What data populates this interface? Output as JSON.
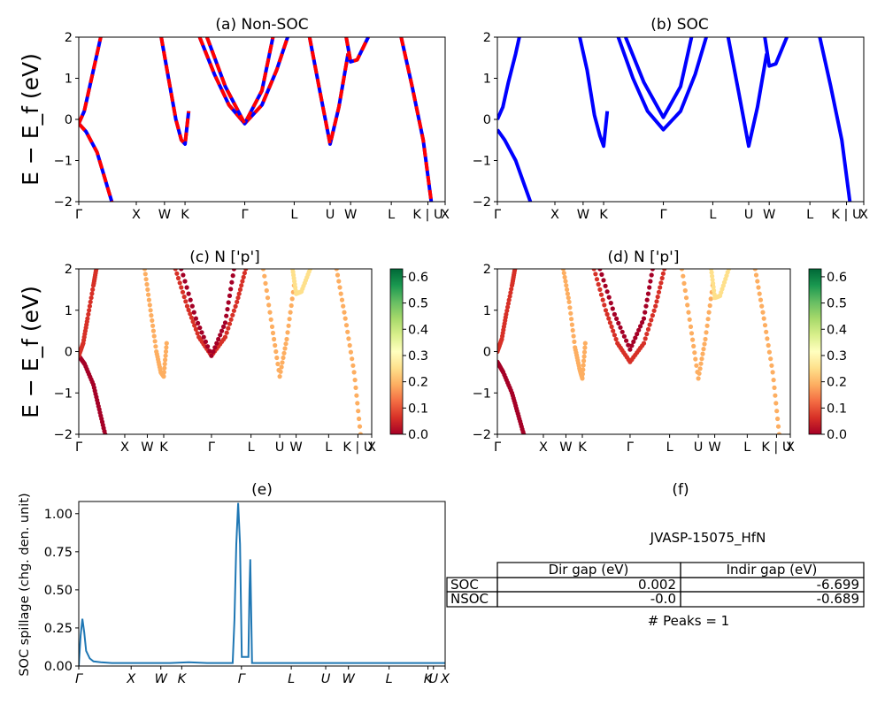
{
  "figure": {
    "ylabel_bands": "E − E_f (eV)",
    "ylabel_spillage": "SOC spillage (chg. den. unit)"
  },
  "colors": {
    "band_blue": "#0000ff",
    "band_red": "#ff0000",
    "spillage_line": "#1f77b4",
    "colormap": "RdYlGn"
  },
  "chart_data": [
    {
      "id": "a",
      "type": "line",
      "title": "(a) Non-SOC",
      "ylabel": "E − E_f (eV)",
      "ylim": [
        -2,
        2
      ],
      "yticks": [
        "−2",
        "−1",
        "0",
        "1",
        "2"
      ],
      "kpath_labels": [
        "Γ",
        "X",
        "W",
        "K",
        "Γ",
        "L",
        "U",
        "W",
        "L",
        "K | U",
        "X"
      ],
      "kpath_positions": [
        0,
        0.157,
        0.234,
        0.29,
        0.453,
        0.588,
        0.686,
        0.742,
        0.853,
        0.953,
        1
      ],
      "series": [
        {
          "color": "blue+red dashed",
          "x": [
            0,
            0.02,
            0.05,
            0.07,
            0.09
          ],
          "y": [
            -0.1,
            -0.3,
            -0.8,
            -1.4,
            -2
          ]
        },
        {
          "color": "blue+red dashed",
          "x": [
            0,
            0.015,
            0.03,
            0.05,
            0.06
          ],
          "y": [
            -0.1,
            0.2,
            0.8,
            1.6,
            2
          ]
        },
        {
          "color": "blue+red dashed",
          "x": [
            0.225,
            0.245,
            0.265,
            0.28,
            0.29,
            0.3
          ],
          "y": [
            2,
            1,
            0.0,
            -0.5,
            -0.6,
            0.2
          ]
        },
        {
          "color": "blue+red dashed",
          "x": [
            0.33,
            0.37,
            0.41,
            0.453,
            0.5,
            0.54,
            0.57
          ],
          "y": [
            2,
            1.1,
            0.35,
            -0.1,
            0.35,
            1.2,
            2
          ]
        },
        {
          "color": "blue+red dashed",
          "x": [
            0.35,
            0.4,
            0.453,
            0.5,
            0.53
          ],
          "y": [
            2,
            0.8,
            -0.1,
            0.7,
            2
          ]
        },
        {
          "color": "blue+red dashed",
          "x": [
            0.63,
            0.66,
            0.686,
            0.71,
            0.735
          ],
          "y": [
            2,
            0.6,
            -0.6,
            0.3,
            1.6
          ]
        },
        {
          "color": "blue+red dashed",
          "x": [
            0.73,
            0.742,
            0.76,
            0.79
          ],
          "y": [
            2,
            1.4,
            1.45,
            2
          ]
        },
        {
          "color": "blue+red dashed",
          "x": [
            0.88,
            0.91,
            0.94,
            0.962
          ],
          "y": [
            2,
            0.8,
            -0.5,
            -2
          ]
        }
      ]
    },
    {
      "id": "b",
      "type": "line",
      "title": "(b) SOC",
      "ylim": [
        -2,
        2
      ],
      "yticks": [
        "−2",
        "−1",
        "0",
        "1",
        "2"
      ],
      "kpath_labels": [
        "Γ",
        "X",
        "W",
        "K",
        "Γ",
        "L",
        "U",
        "W",
        "L",
        "K | U",
        "X"
      ],
      "kpath_positions": [
        0,
        0.157,
        0.234,
        0.29,
        0.453,
        0.588,
        0.686,
        0.742,
        0.853,
        0.953,
        1
      ],
      "series": [
        {
          "color": "blue",
          "x": [
            0,
            0.02,
            0.05,
            0.07,
            0.09
          ],
          "y": [
            -0.25,
            -0.5,
            -1.0,
            -1.5,
            -2
          ]
        },
        {
          "color": "blue",
          "x": [
            0,
            0.015,
            0.03,
            0.05,
            0.06
          ],
          "y": [
            0.0,
            0.3,
            0.9,
            1.6,
            2
          ]
        },
        {
          "color": "blue",
          "x": [
            0.225,
            0.245,
            0.265,
            0.28,
            0.29,
            0.3
          ],
          "y": [
            2,
            1.2,
            0.1,
            -0.4,
            -0.65,
            0.2
          ]
        },
        {
          "color": "blue",
          "x": [
            0.33,
            0.37,
            0.41,
            0.453,
            0.5,
            0.54,
            0.57
          ],
          "y": [
            2,
            1.0,
            0.2,
            -0.25,
            0.2,
            1.1,
            2
          ]
        },
        {
          "color": "blue",
          "x": [
            0.35,
            0.4,
            0.453,
            0.5,
            0.53
          ],
          "y": [
            2,
            0.9,
            0.05,
            0.8,
            2
          ]
        },
        {
          "color": "blue",
          "x": [
            0.63,
            0.66,
            0.686,
            0.71,
            0.735
          ],
          "y": [
            2,
            0.6,
            -0.65,
            0.3,
            1.6
          ]
        },
        {
          "color": "blue",
          "x": [
            0.73,
            0.742,
            0.76,
            0.79
          ],
          "y": [
            2,
            1.3,
            1.35,
            2
          ]
        },
        {
          "color": "blue",
          "x": [
            0.88,
            0.91,
            0.94,
            0.962
          ],
          "y": [
            2,
            0.8,
            -0.5,
            -2
          ]
        }
      ]
    },
    {
      "id": "c",
      "type": "scatter",
      "title": "(c)  N ['p']",
      "ylim": [
        -2,
        2
      ],
      "yticks": [
        "−2",
        "−1",
        "0",
        "1",
        "2"
      ],
      "kpath_labels": [
        "Γ",
        "X",
        "W",
        "K",
        "Γ",
        "L",
        "U",
        "W",
        "L",
        "K | U",
        "X"
      ],
      "kpath_positions": [
        0,
        0.157,
        0.234,
        0.29,
        0.453,
        0.588,
        0.686,
        0.742,
        0.853,
        0.953,
        1
      ],
      "colorbar": {
        "ticks": [
          "0.0",
          "0.1",
          "0.2",
          "0.3",
          "0.4",
          "0.5",
          "0.6"
        ],
        "range": [
          0,
          0.63
        ]
      },
      "series": [
        {
          "weight": 0.02,
          "x": [
            0,
            0.02,
            0.05,
            0.07,
            0.09
          ],
          "y": [
            -0.1,
            -0.3,
            -0.8,
            -1.4,
            -2
          ]
        },
        {
          "weight": 0.06,
          "x": [
            0,
            0.015,
            0.03,
            0.05,
            0.06
          ],
          "y": [
            -0.1,
            0.2,
            0.8,
            1.6,
            2
          ]
        },
        {
          "weight": 0.22,
          "x": [
            0.225,
            0.245,
            0.265,
            0.28,
            0.29,
            0.3
          ],
          "y": [
            2,
            1,
            0.0,
            -0.5,
            -0.6,
            0.2
          ]
        },
        {
          "weight": 0.04,
          "x": [
            0.33,
            0.37,
            0.41,
            0.453,
            0.5,
            0.54,
            0.57
          ],
          "y": [
            2,
            1.1,
            0.35,
            -0.1,
            0.35,
            1.2,
            2
          ]
        },
        {
          "weight": 0.02,
          "x": [
            0.35,
            0.4,
            0.453,
            0.5,
            0.53
          ],
          "y": [
            2,
            0.8,
            -0.1,
            0.7,
            2
          ]
        },
        {
          "weight": 0.2,
          "x": [
            0.63,
            0.66,
            0.686,
            0.71,
            0.735
          ],
          "y": [
            2,
            0.6,
            -0.6,
            0.3,
            1.6
          ]
        },
        {
          "weight": 0.24,
          "x": [
            0.73,
            0.742,
            0.76,
            0.79
          ],
          "y": [
            2,
            1.4,
            1.45,
            2
          ]
        },
        {
          "weight": 0.16,
          "x": [
            0.88,
            0.91,
            0.94,
            0.962
          ],
          "y": [
            2,
            0.8,
            -0.5,
            -2
          ]
        }
      ]
    },
    {
      "id": "d",
      "type": "scatter",
      "title": "(d) N ['p']",
      "ylim": [
        -2,
        2
      ],
      "yticks": [
        "−2",
        "−1",
        "0",
        "1",
        "2"
      ],
      "kpath_labels": [
        "Γ",
        "X",
        "W",
        "K",
        "Γ",
        "L",
        "U",
        "W",
        "L",
        "K | U",
        "X"
      ],
      "kpath_positions": [
        0,
        0.157,
        0.234,
        0.29,
        0.453,
        0.588,
        0.686,
        0.742,
        0.853,
        0.953,
        1
      ],
      "colorbar": {
        "ticks": [
          "0.0",
          "0.1",
          "0.2",
          "0.3",
          "0.4",
          "0.5",
          "0.6"
        ],
        "range": [
          0,
          0.63
        ]
      },
      "series": [
        {
          "weight": 0.02,
          "x": [
            0,
            0.02,
            0.05,
            0.07,
            0.09
          ],
          "y": [
            -0.25,
            -0.5,
            -1.0,
            -1.5,
            -2
          ]
        },
        {
          "weight": 0.06,
          "x": [
            0,
            0.015,
            0.03,
            0.05,
            0.06
          ],
          "y": [
            0.0,
            0.3,
            0.9,
            1.6,
            2
          ]
        },
        {
          "weight": 0.22,
          "x": [
            0.225,
            0.245,
            0.265,
            0.28,
            0.29,
            0.3
          ],
          "y": [
            2,
            1.2,
            0.1,
            -0.4,
            -0.65,
            0.2
          ]
        },
        {
          "weight": 0.04,
          "x": [
            0.33,
            0.37,
            0.41,
            0.453,
            0.5,
            0.54,
            0.57
          ],
          "y": [
            2,
            1.0,
            0.2,
            -0.25,
            0.2,
            1.1,
            2
          ]
        },
        {
          "weight": 0.02,
          "x": [
            0.35,
            0.4,
            0.453,
            0.5,
            0.53
          ],
          "y": [
            2,
            0.9,
            0.05,
            0.8,
            2
          ]
        },
        {
          "weight": 0.2,
          "x": [
            0.63,
            0.66,
            0.686,
            0.71,
            0.735
          ],
          "y": [
            2,
            0.6,
            -0.65,
            0.3,
            1.6
          ]
        },
        {
          "weight": 0.24,
          "x": [
            0.73,
            0.742,
            0.76,
            0.79
          ],
          "y": [
            2,
            1.3,
            1.35,
            2
          ]
        },
        {
          "weight": 0.16,
          "x": [
            0.88,
            0.91,
            0.94,
            0.962
          ],
          "y": [
            2,
            0.8,
            -0.5,
            -2
          ]
        }
      ]
    },
    {
      "id": "e",
      "type": "line",
      "title": "(e)",
      "ylabel": "SOC spillage (chg. den. unit)",
      "ylim": [
        0,
        1.08
      ],
      "yticks": [
        "0.00",
        "0.25",
        "0.50",
        "0.75",
        "1.00"
      ],
      "kpath_labels": [
        "Γ",
        "X",
        "W",
        "K",
        "Γ",
        "L",
        "U",
        "W",
        "L",
        "K",
        "U",
        "X"
      ],
      "kpath_positions": [
        0,
        0.143,
        0.224,
        0.281,
        0.444,
        0.58,
        0.674,
        0.736,
        0.847,
        0.953,
        0.968,
        1
      ],
      "x": [
        0,
        0.005,
        0.01,
        0.015,
        0.02,
        0.03,
        0.04,
        0.06,
        0.09,
        0.15,
        0.25,
        0.3,
        0.35,
        0.4,
        0.42,
        0.425,
        0.43,
        0.435,
        0.44,
        0.445,
        0.45,
        0.455,
        0.46,
        0.463,
        0.466,
        0.468,
        0.473,
        0.6,
        0.8,
        0.95,
        1
      ],
      "y": [
        0.0,
        0.2,
        0.31,
        0.22,
        0.1,
        0.05,
        0.03,
        0.025,
        0.02,
        0.02,
        0.02,
        0.025,
        0.02,
        0.02,
        0.02,
        0.3,
        0.8,
        1.07,
        0.8,
        0.06,
        0.06,
        0.06,
        0.06,
        0.06,
        0.5,
        0.7,
        0.02,
        0.02,
        0.02,
        0.02,
        0.02
      ]
    }
  ],
  "table_panel": {
    "title": "(f)",
    "subtitle": "JVASP-15075_HfN",
    "col_headers": [
      "Dir gap (eV)",
      "Indir gap (eV)"
    ],
    "rows": [
      {
        "label": "SOC",
        "dir": "0.002",
        "indir": "-6.699"
      },
      {
        "label": "NSOC",
        "dir": "-0.0",
        "indir": "-0.689"
      }
    ],
    "peaks": "# Peaks = 1"
  }
}
